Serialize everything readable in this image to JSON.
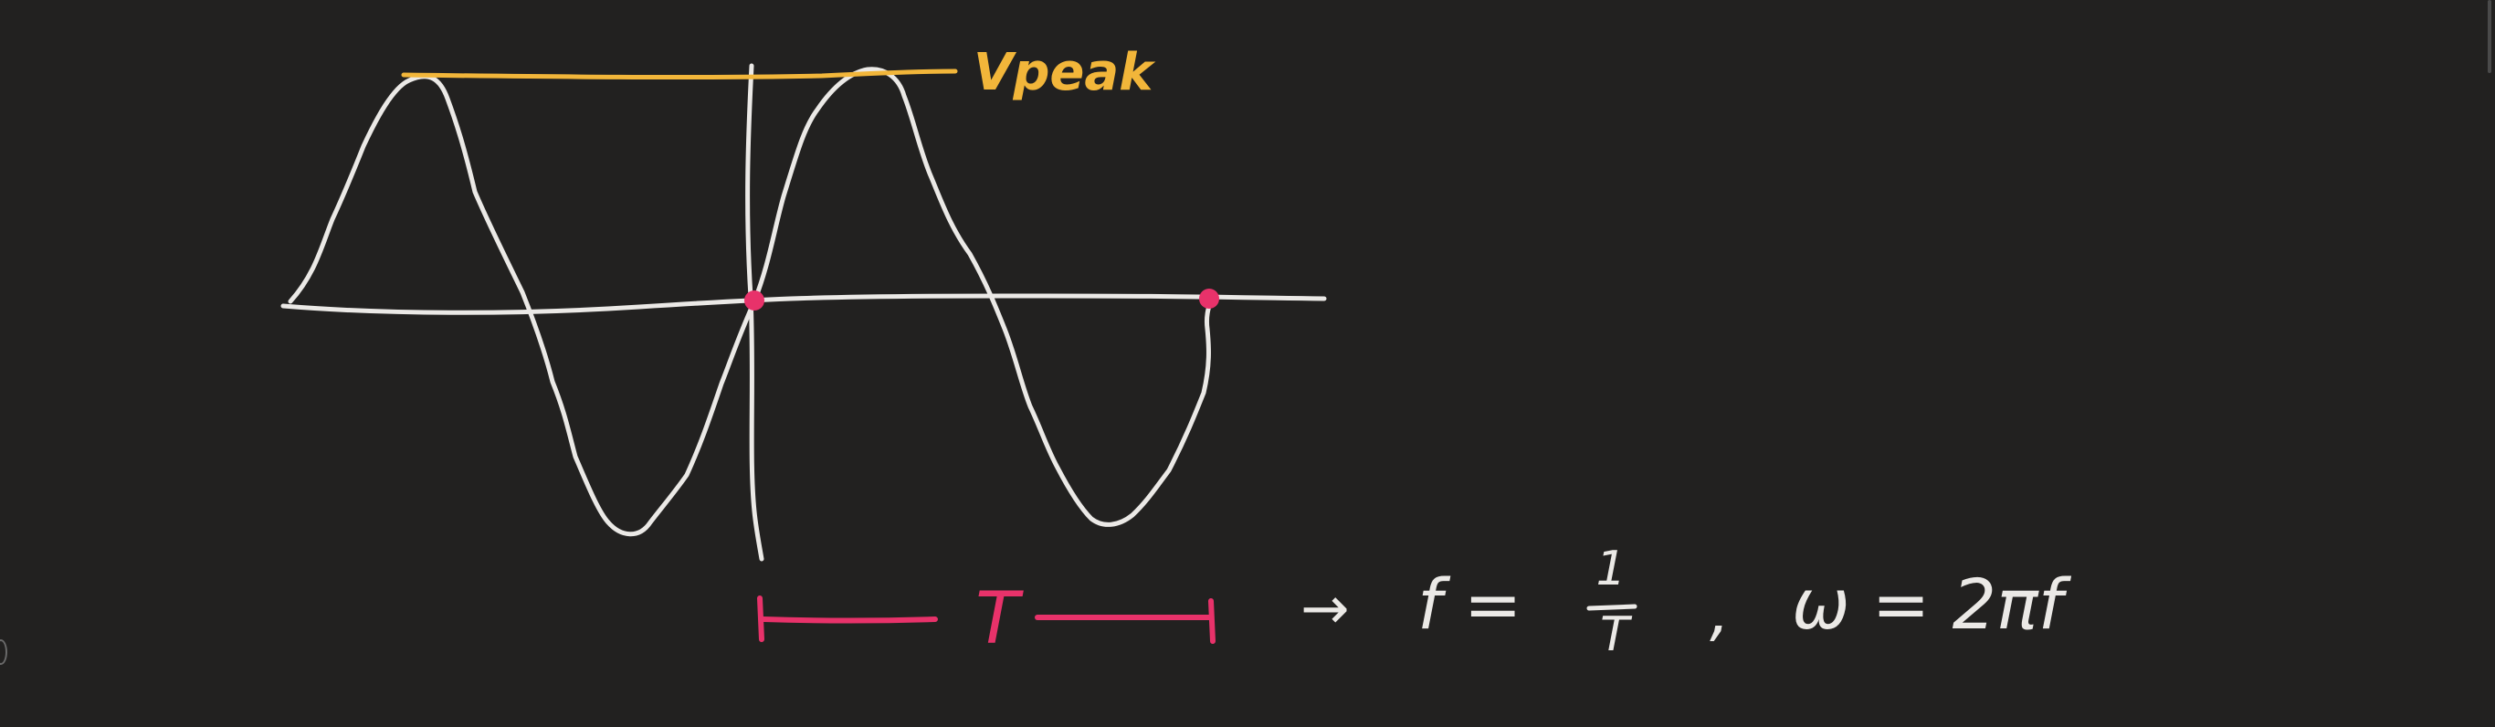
{
  "colors": {
    "background": "#222120",
    "ink": "#ebe9e6",
    "peak": "#f2b63a",
    "marker": "#e8326a"
  },
  "labels": {
    "peak": "Vpeak",
    "period": "T",
    "arrow": "→",
    "freq_lhs": "f =",
    "freq_num": "1",
    "freq_den": "T",
    "comma": ",",
    "omega": "ω = 2πf"
  }
}
